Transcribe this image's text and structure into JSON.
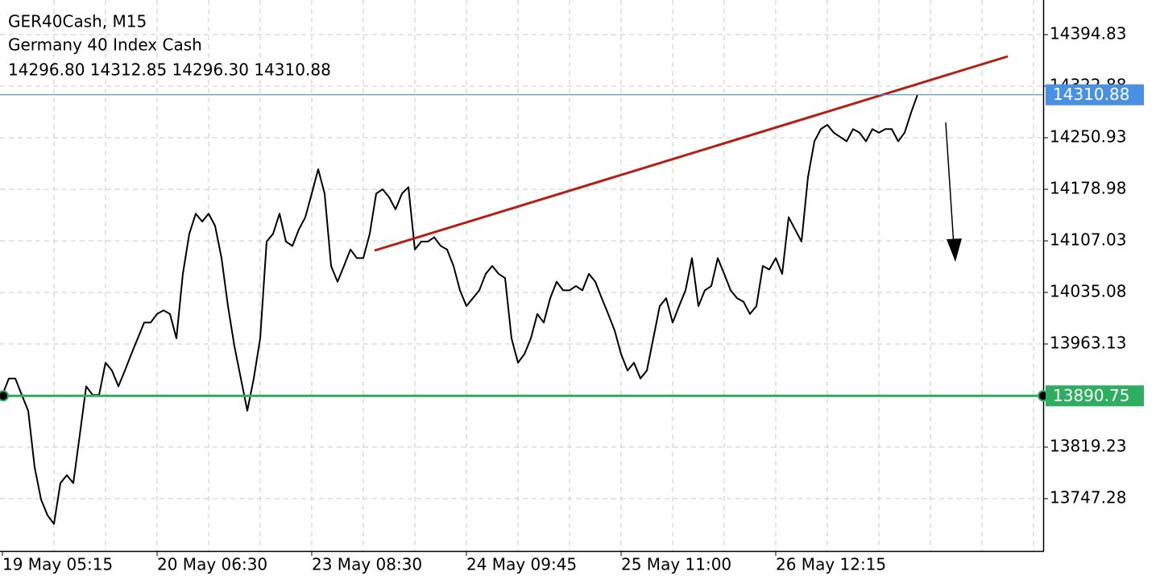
{
  "chart_data": {
    "type": "line",
    "title": "GER40Cash, M15",
    "subtitle": "Germany 40 Index Cash",
    "ohlc": "14296.80 14312.85 14296.30 14310.88",
    "color": "#000000",
    "grid": true,
    "categories": [
      "19 May 05:15",
      null,
      null,
      null,
      null,
      null,
      null,
      null,
      null,
      null,
      null,
      null,
      null,
      null,
      null,
      null,
      null,
      null,
      null,
      null,
      null,
      null,
      null,
      null,
      "20 May 06:30",
      null,
      null,
      null,
      null,
      null,
      null,
      null,
      null,
      null,
      null,
      null,
      null,
      null,
      null,
      null,
      null,
      null,
      null,
      null,
      null,
      null,
      null,
      null,
      "23 May 08:30",
      null,
      null,
      null,
      null,
      null,
      null,
      null,
      null,
      null,
      null,
      null,
      null,
      null,
      null,
      null,
      null,
      null,
      null,
      null,
      null,
      null,
      null,
      null,
      "24 May 09:45",
      null,
      null,
      null,
      null,
      null,
      null,
      null,
      null,
      null,
      null,
      null,
      null,
      null,
      null,
      null,
      null,
      null,
      null,
      null,
      null,
      null,
      null,
      null,
      "25 May 11:00",
      null,
      null,
      null,
      null,
      null,
      null,
      null,
      null,
      null,
      null,
      null,
      null,
      null,
      null,
      null,
      null,
      null,
      null,
      null,
      null,
      null,
      null,
      null,
      "26 May 12:15",
      null,
      null,
      null,
      null,
      null,
      null,
      null,
      null,
      null,
      null,
      null,
      null,
      null,
      null,
      null,
      null,
      null,
      null,
      null,
      null,
      null,
      null,
      null,
      null,
      null,
      null,
      null,
      null,
      null,
      null,
      null,
      null,
      null,
      null,
      null,
      null,
      null,
      null,
      null,
      null,
      null
    ],
    "values": [
      13892,
      13915,
      13915,
      13892,
      13870,
      13791,
      13746,
      13724,
      13712,
      13769,
      13780,
      13769,
      13836,
      13904,
      13892,
      13892,
      13937,
      13926,
      13904,
      13926,
      13949,
      13971,
      13993,
      13993,
      14005,
      14010,
      14005,
      13971,
      14061,
      14117,
      14145,
      14134,
      14145,
      14128,
      14083,
      14016,
      13960,
      13915,
      13870,
      13915,
      13971,
      14106,
      14117,
      14145,
      14106,
      14100,
      14123,
      14140,
      14173,
      14207,
      14173,
      14072,
      14050,
      14072,
      14095,
      14083,
      14083,
      14117,
      14173,
      14179,
      14168,
      14151,
      14173,
      14182,
      14095,
      14106,
      14106,
      14112,
      14100,
      14095,
      14072,
      14038,
      14016,
      14027,
      14038,
      14061,
      14072,
      14061,
      14055,
      13971,
      13937,
      13949,
      13971,
      14005,
      13993,
      14027,
      14050,
      14038,
      14038,
      14044,
      14038,
      14061,
      14050,
      14027,
      14005,
      13982,
      13949,
      13926,
      13937,
      13915,
      13926,
      13971,
      14016,
      14027,
      13993,
      14016,
      14038,
      14083,
      14016,
      14038,
      14044,
      14083,
      14061,
      14038,
      14027,
      14022,
      14005,
      14016,
      14072,
      14067,
      14083,
      14061,
      14140,
      14123,
      14106,
      14196,
      14246,
      14263,
      14269,
      14258,
      14252,
      14246,
      14263,
      14258,
      14246,
      14263,
      14258,
      14263,
      14263,
      14246,
      14258,
      14286,
      14311,
      null,
      null,
      null,
      null,
      null,
      null,
      null,
      null,
      null,
      null,
      null,
      null,
      null,
      null,
      null,
      null,
      null,
      null,
      null
    ],
    "ylim": [
      13674.21,
      14443.17
    ],
    "yticks": [
      13747.28,
      13819.23,
      13963.13,
      14035.08,
      14107.03,
      14178.98,
      14250.93,
      14322.88,
      14394.83
    ],
    "hlines": [
      {
        "value": 14310.88,
        "color": "#4a90e2"
      },
      {
        "value": 13890.75,
        "color": "#2fae62"
      }
    ]
  }
}
